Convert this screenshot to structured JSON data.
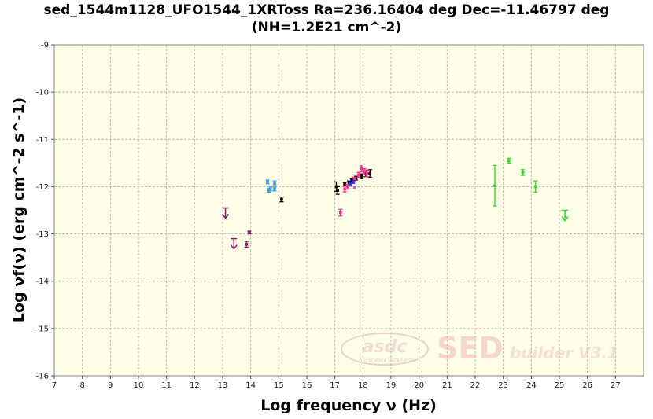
{
  "chart_data": {
    "type": "scatter",
    "title": "sed_1544m1128_UFO1544_1XRToss Ra=236.16404 deg Dec=-11.46797 deg",
    "subtitle": "(NH=1.2E21 cm^-2)",
    "xlabel": "Log frequency ν (Hz)",
    "ylabel": "Log νf(ν) (erg cm^-2 s^-1)",
    "xlim": [
      7,
      28
    ],
    "ylim": [
      -16,
      -9
    ],
    "xticks": [
      "7",
      "8",
      "9",
      "10",
      "11",
      "12",
      "13",
      "14",
      "15",
      "16",
      "17",
      "18",
      "19",
      "20",
      "21",
      "22",
      "23",
      "24",
      "25",
      "26",
      "27"
    ],
    "yticks": [
      "-9",
      "-10",
      "-11",
      "-12",
      "-13",
      "-14",
      "-15",
      "-16"
    ],
    "grid": true,
    "plot_background": "#ffffe8",
    "watermark": {
      "logo": "asdc",
      "logo_sub": "ASI Science Data Center",
      "brand": "SED",
      "brand_sub": "builder V3.1"
    },
    "series": [
      {
        "color": "#8b1a6b",
        "points": [
          {
            "x": 13.1,
            "y": -12.55,
            "type": "ul"
          },
          {
            "x": 13.4,
            "y": -13.2,
            "type": "ul"
          },
          {
            "x": 13.85,
            "y": -13.22,
            "err": 0.06
          },
          {
            "x": 13.95,
            "y": -12.97,
            "err": 0.03
          }
        ]
      },
      {
        "color": "#3aa0e0",
        "points": [
          {
            "x": 14.6,
            "y": -11.9,
            "err": 0.04
          },
          {
            "x": 14.65,
            "y": -12.08,
            "err": 0.04
          },
          {
            "x": 14.7,
            "y": -12.05,
            "err": 0.04
          },
          {
            "x": 14.85,
            "y": -11.92,
            "err": 0.04
          },
          {
            "x": 14.85,
            "y": -12.05,
            "err": 0.04
          }
        ]
      },
      {
        "color": "#000000",
        "points": [
          {
            "x": 15.1,
            "y": -12.27,
            "err": 0.05
          },
          {
            "x": 17.05,
            "y": -12.0,
            "err": 0.1
          },
          {
            "x": 17.1,
            "y": -12.08,
            "err": 0.08
          },
          {
            "x": 17.35,
            "y": -11.95,
            "err": 0.04
          },
          {
            "x": 17.5,
            "y": -11.92,
            "err": 0.04
          },
          {
            "x": 17.6,
            "y": -11.87,
            "err": 0.04
          },
          {
            "x": 17.75,
            "y": -11.82,
            "err": 0.04
          },
          {
            "x": 17.95,
            "y": -11.78,
            "err": 0.05
          },
          {
            "x": 18.1,
            "y": -11.73,
            "err": 0.06
          },
          {
            "x": 18.25,
            "y": -11.72,
            "err": 0.08
          }
        ]
      },
      {
        "color": "#ff2a8a",
        "points": [
          {
            "x": 17.2,
            "y": -12.55,
            "err": 0.07
          },
          {
            "x": 17.35,
            "y": -12.05,
            "err": 0.06
          },
          {
            "x": 17.45,
            "y": -12.0,
            "err": 0.05
          },
          {
            "x": 17.7,
            "y": -11.85,
            "err": 0.05
          },
          {
            "x": 17.85,
            "y": -11.75,
            "err": 0.05
          },
          {
            "x": 17.95,
            "y": -11.62,
            "err": 0.06
          },
          {
            "x": 18.05,
            "y": -11.68,
            "err": 0.06
          },
          {
            "x": 18.15,
            "y": -11.72,
            "err": 0.07
          }
        ]
      },
      {
        "color": "#2a2ae0",
        "points": [
          {
            "x": 17.55,
            "y": -11.93,
            "err": 0.03
          },
          {
            "x": 17.65,
            "y": -11.9,
            "err": 0.03
          }
        ]
      },
      {
        "color": "#b070e0",
        "points": [
          {
            "x": 17.7,
            "y": -12.02,
            "err": 0.03
          }
        ]
      },
      {
        "color": "#22e022",
        "points": [
          {
            "x": 22.7,
            "y": -11.98,
            "err": 0.43
          },
          {
            "x": 23.2,
            "y": -11.45,
            "err": 0.05
          },
          {
            "x": 23.7,
            "y": -11.7,
            "err": 0.06
          },
          {
            "x": 24.15,
            "y": -12.0,
            "err": 0.12
          },
          {
            "x": 25.2,
            "y": -12.6,
            "type": "ul"
          }
        ]
      }
    ]
  }
}
